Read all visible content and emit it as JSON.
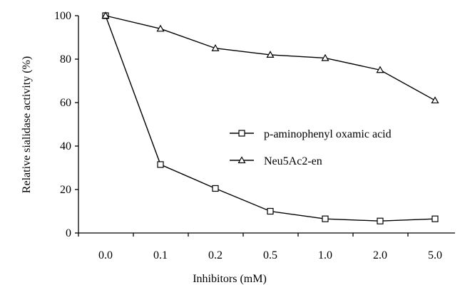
{
  "chart_data": {
    "type": "line",
    "title": "",
    "xlabel": "Inhibitors (mM)",
    "ylabel": "Relative sialidase activity (%)",
    "categories": [
      "0.0",
      "0.1",
      "0.2",
      "0.5",
      "1.0",
      "2.0",
      "5.0"
    ],
    "yticks": [
      "0",
      "20",
      "40",
      "60",
      "80",
      "100"
    ],
    "ylim": [
      0,
      100
    ],
    "grid": false,
    "legend_position": "right",
    "series": [
      {
        "name": "p-aminophenyl oxamic acid",
        "marker": "square",
        "values": [
          100,
          31.5,
          20.5,
          10,
          6.5,
          5.5,
          6.5
        ]
      },
      {
        "name": "Neu5Ac2-en",
        "marker": "triangle",
        "values": [
          100,
          94,
          85,
          82,
          80.5,
          75,
          61
        ]
      }
    ],
    "colors": {
      "line": "#000000",
      "marker_fill": "#ffffff",
      "background": "#ffffff"
    }
  }
}
